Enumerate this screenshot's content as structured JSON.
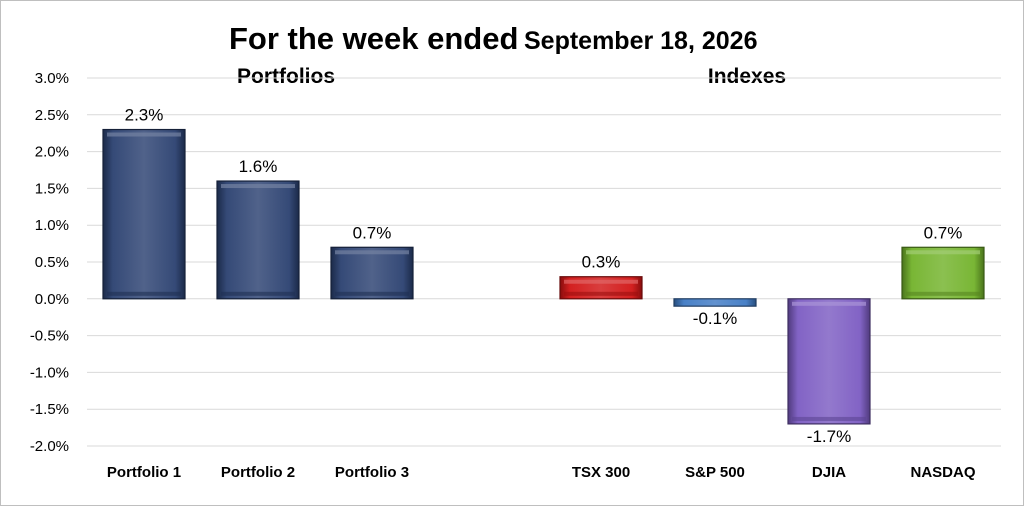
{
  "chart_data": {
    "type": "bar",
    "title": "For the week ended",
    "title_date": "September 18, 2026",
    "groups": [
      {
        "label": "Portfolios",
        "categories": [
          "Portfolio 1",
          "Portfolio 2",
          "Portfolio 3"
        ]
      },
      {
        "label": "Indexes",
        "categories": [
          "TSX 300",
          "S&P 500",
          "DJIA",
          "NASDAQ"
        ]
      }
    ],
    "categories": [
      "Portfolio 1",
      "Portfolio 2",
      "Portfolio 3",
      "TSX 300",
      "S&P 500",
      "DJIA",
      "NASDAQ"
    ],
    "values": [
      2.3,
      1.6,
      0.7,
      0.3,
      -0.1,
      -1.7,
      0.7
    ],
    "data_labels": [
      "2.3%",
      "1.6%",
      "0.7%",
      "0.3%",
      "-0.1%",
      "-1.7%",
      "0.7%"
    ],
    "colors": [
      "#2a4070",
      "#2a4070",
      "#2a4070",
      "#d11414",
      "#3f7ac4",
      "#7b5bc2",
      "#72b22a"
    ],
    "ylim": [
      -2.0,
      3.0
    ],
    "yticks": [
      "3.0%",
      "2.5%",
      "2.0%",
      "1.5%",
      "1.0%",
      "0.5%",
      "0.0%",
      "-0.5%",
      "-1.0%",
      "-1.5%",
      "-2.0%"
    ],
    "ytick_values": [
      3.0,
      2.5,
      2.0,
      1.5,
      1.0,
      0.5,
      0.0,
      -0.5,
      -1.0,
      -1.5,
      -2.0
    ],
    "grid": true,
    "xlabel": "",
    "ylabel": ""
  }
}
